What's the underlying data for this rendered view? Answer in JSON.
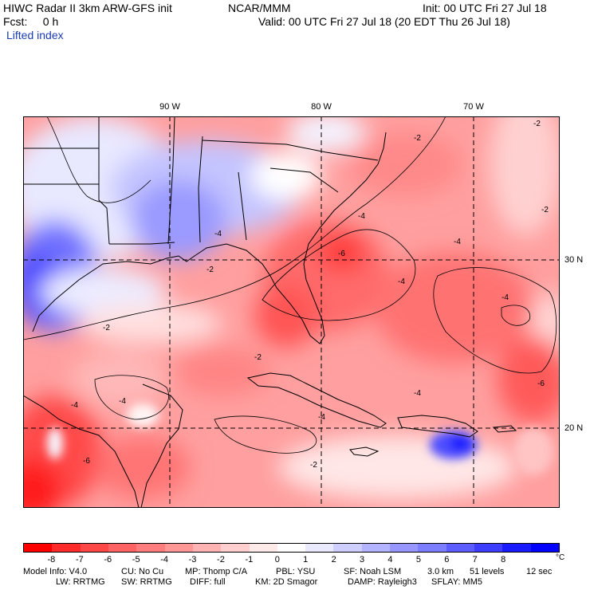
{
  "header": {
    "model_title": "HIWC Radar II 3km ARW-GFS init",
    "org": "NCAR/MMM",
    "init": "Init: 00 UTC Fri 27 Jul 18",
    "forecast": "Fcst:     0 h",
    "valid": "Valid: 00 UTC Fri 27 Jul 18 (20 EDT Thu 26 Jul 18)",
    "field": "Lifted index"
  },
  "map": {
    "longitude_labels": [
      "90 W",
      "80 W",
      "70 W"
    ],
    "latitude_labels": [
      "30 N",
      "20 N"
    ],
    "contour_labels": [
      "-2",
      "-4",
      "-6"
    ],
    "colors": {
      "land_outline": "#000000",
      "gridline": "#000000"
    }
  },
  "colorbar": {
    "unit": "°C",
    "tick_labels": [
      "-8",
      "-7",
      "-6",
      "-5",
      "-4",
      "-3",
      "-2",
      "-1",
      "0",
      "1",
      "2",
      "3",
      "4",
      "5",
      "6",
      "7",
      "8"
    ],
    "colors": [
      "#ff0000",
      "#ff2a2a",
      "#ff4747",
      "#ff6363",
      "#ff7d7d",
      "#ff9797",
      "#ffb3b3",
      "#ffcfcf",
      "#ffeaea",
      "#ffffff",
      "#eaeaff",
      "#cfcfff",
      "#b3b3ff",
      "#9797ff",
      "#7d7dff",
      "#5c5cff",
      "#3d3dff",
      "#1a1aff",
      "#0000ff"
    ]
  },
  "info": {
    "line1": [
      {
        "label": "Model Info: V4.0"
      },
      {
        "label": "CU: No Cu"
      },
      {
        "label": "MP: Thomp C/A"
      },
      {
        "label": "PBL: YSU"
      },
      {
        "label": "SF: Noah LSM"
      },
      {
        "label": "3.0 km"
      },
      {
        "label": "51 levels"
      },
      {
        "label": "12 sec"
      }
    ],
    "line2": [
      {
        "label": "LW: RRTMG"
      },
      {
        "label": "SW: RRTMG"
      },
      {
        "label": "DIFF: full"
      },
      {
        "label": "KM: 2D Smagor"
      },
      {
        "label": "DAMP: Rayleigh3"
      },
      {
        "label": "SFLAY: MM5"
      }
    ]
  }
}
